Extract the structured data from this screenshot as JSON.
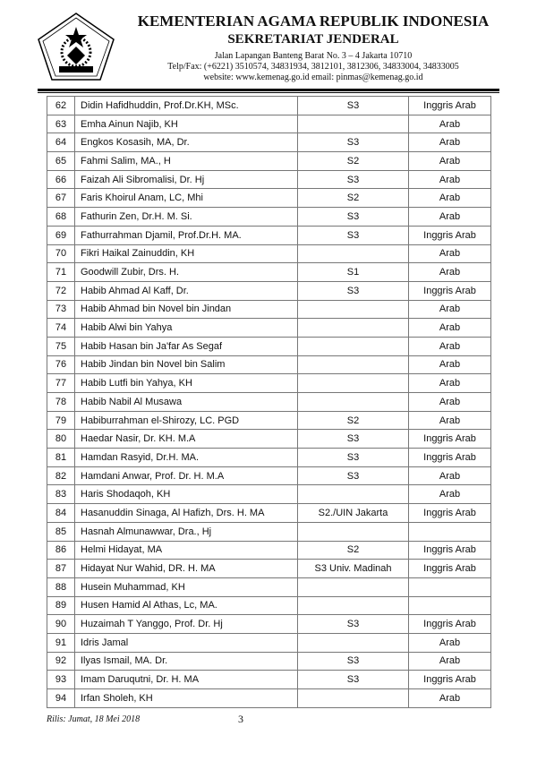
{
  "header": {
    "title": "KEMENTERIAN AGAMA REPUBLIK INDONESIA",
    "subtitle": "SEKRETARIAT JENDERAL",
    "address": "Jalan Lapangan Banteng Barat No. 3 – 4 Jakarta 10710",
    "phone": "Telp/Fax: (+6221) 3510574, 34831934, 3812101, 3812306, 34833004, 34833005",
    "web": "website: www.kemenag.go.id email: pinmas@kemenag.go.id",
    "logo_text": "IKHLAS BERAMAL"
  },
  "rows": [
    [
      "62",
      "Didin Hafidhuddin, Prof.Dr.KH, MSc.",
      "S3",
      "Inggris Arab"
    ],
    [
      "63",
      "Emha Ainun Najib, KH",
      "",
      "Arab"
    ],
    [
      "64",
      "Engkos Kosasih, MA, Dr.",
      "S3",
      "Arab"
    ],
    [
      "65",
      "Fahmi Salim, MA., H",
      "S2",
      "Arab"
    ],
    [
      "66",
      "Faizah Ali Sibromalisi, Dr. Hj",
      "S3",
      "Arab"
    ],
    [
      "67",
      "Faris Khoirul Anam, LC, Mhi",
      "S2",
      "Arab"
    ],
    [
      "68",
      "Fathurin Zen, Dr.H. M. Si.",
      "S3",
      "Arab"
    ],
    [
      "69",
      "Fathurrahman Djamil, Prof.Dr.H. MA.",
      "S3",
      "Inggris Arab"
    ],
    [
      "70",
      "Fikri Haikal Zainuddin, KH",
      "",
      "Arab"
    ],
    [
      "71",
      "Goodwill Zubir, Drs. H.",
      "S1",
      "Arab"
    ],
    [
      "72",
      "Habib Ahmad Al Kaff, Dr.",
      "S3",
      "Inggris Arab"
    ],
    [
      "73",
      "Habib Ahmad bin Novel bin Jindan",
      "",
      "Arab"
    ],
    [
      "74",
      "Habib Alwi bin Yahya",
      "",
      "Arab"
    ],
    [
      "75",
      "Habib Hasan bin Ja'far As Segaf",
      "",
      "Arab"
    ],
    [
      "76",
      "Habib Jindan bin Novel bin Salim",
      "",
      "Arab"
    ],
    [
      "77",
      "Habib Lutfi bin Yahya, KH",
      "",
      "Arab"
    ],
    [
      "78",
      "Habib Nabil Al Musawa",
      "",
      "Arab"
    ],
    [
      "79",
      "Habiburrahman el-Shirozy, LC. PGD",
      "S2",
      "Arab"
    ],
    [
      "80",
      "Haedar Nasir, Dr. KH. M.A",
      "S3",
      "Inggris Arab"
    ],
    [
      "81",
      "Hamdan Rasyid, Dr.H. MA.",
      "S3",
      "Inggris Arab"
    ],
    [
      "82",
      "Hamdani Anwar, Prof. Dr. H. M.A",
      "S3",
      "Arab"
    ],
    [
      "83",
      "Haris Shodaqoh, KH",
      "",
      "Arab"
    ],
    [
      "84",
      "Hasanuddin Sinaga, Al Hafizh, Drs. H.  MA",
      "S2./UIN Jakarta",
      "Inggris Arab"
    ],
    [
      "85",
      "Hasnah Almunawwar, Dra., Hj",
      "",
      ""
    ],
    [
      "86",
      "Helmi Hidayat, MA",
      "S2",
      "Inggris Arab"
    ],
    [
      "87",
      "Hidayat Nur Wahid, DR. H. MA",
      "S3 Univ. Madinah",
      "Inggris Arab"
    ],
    [
      "88",
      "Husein Muhammad, KH",
      "",
      ""
    ],
    [
      "89",
      "Husen Hamid Al Athas, Lc, MA.",
      "",
      ""
    ],
    [
      "90",
      "Huzaimah T Yanggo, Prof. Dr. Hj",
      "S3",
      "Inggris Arab"
    ],
    [
      "91",
      "Idris Jamal",
      "",
      "Arab"
    ],
    [
      "92",
      "Ilyas Ismail, MA. Dr.",
      "S3",
      "Arab"
    ],
    [
      "93",
      "Imam Daruqutni, Dr. H. MA",
      "S3",
      "Inggris Arab"
    ],
    [
      "94",
      "Irfan Sholeh, KH",
      "",
      "Arab"
    ]
  ],
  "footer": {
    "release": "Rilis: Jumat, 18 Mei 2018",
    "page": "3"
  }
}
